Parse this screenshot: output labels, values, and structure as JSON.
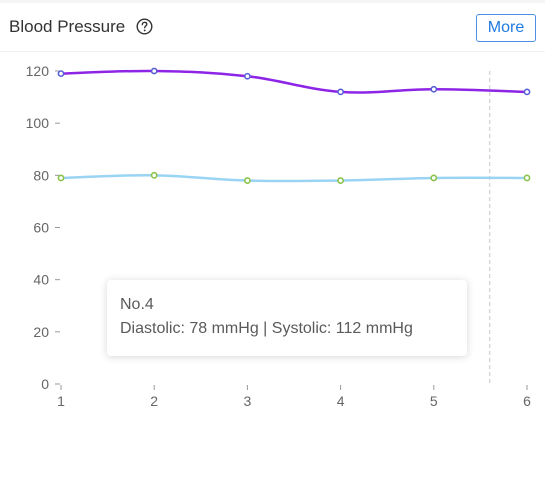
{
  "header": {
    "title": "Blood Pressure",
    "help_icon": "question-circle-icon",
    "more_label": "More"
  },
  "tooltip": {
    "title": "No.4",
    "diastolic_label": "Diastolic",
    "diastolic_value": "78 mmHg",
    "separator": "|",
    "systolic_label": "Systolic",
    "systolic_value": "112 mmHg"
  },
  "colors": {
    "systolic_line": "#8e24e6",
    "diastolic_line": "#9ad4f5",
    "point_stroke_systolic": "#5a5fd6",
    "point_stroke_diastolic": "#8bc34a",
    "accent": "#1f7ae0"
  },
  "chart_data": {
    "type": "line",
    "x": [
      1,
      2,
      3,
      4,
      5,
      6
    ],
    "ylim": [
      0,
      120
    ],
    "yticks": [
      0,
      20,
      40,
      60,
      80,
      100,
      120
    ],
    "grid": false,
    "series": [
      {
        "key": "systolic",
        "values": [
          119,
          120,
          118,
          112,
          113,
          112
        ]
      },
      {
        "key": "diastolic",
        "values": [
          79,
          80,
          78,
          78,
          79,
          79
        ]
      }
    ],
    "cursor_x": 5.6
  }
}
